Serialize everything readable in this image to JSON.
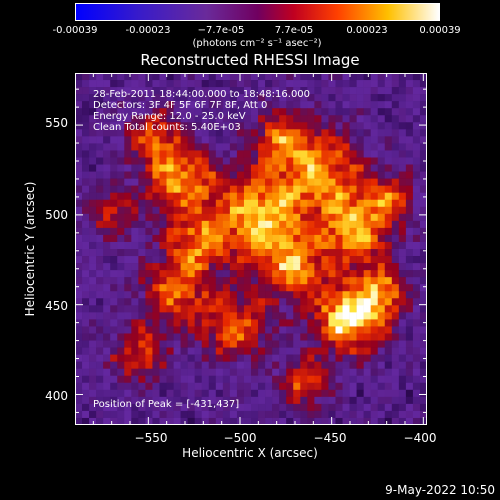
{
  "colorbar": {
    "labels": [
      "-0.00039",
      "-0.00023",
      "−7.7e-05",
      "7.7e-05",
      "0.00023",
      "0.00039"
    ],
    "units": "(photons cm⁻² s⁻¹ asec⁻²)"
  },
  "chart_data": {
    "type": "heatmap",
    "title": "Reconstructed RHESSI Image",
    "xlabel": "Heliocentric X (arcsec)",
    "ylabel": "Heliocentric Y (arcsec)",
    "xlim": [
      -590,
      -398
    ],
    "ylim": [
      383,
      579
    ],
    "xticks": [
      -550,
      -500,
      -450,
      -400
    ],
    "yticks": [
      400,
      450,
      500,
      550
    ],
    "x_tick_labels": [
      "−550",
      "−500",
      "−450",
      "−400"
    ],
    "y_tick_labels": [
      "400",
      "450",
      "500",
      "550"
    ],
    "colorbar_range": [
      -0.00039,
      0.00039
    ],
    "peak_position": [
      -431,
      437
    ],
    "annotations": [
      "28-Feb-2011 18:44:00.000 to 18:48:16.000",
      "Detectors: 3F 4F 5F 6F 7F 8F, Att 0",
      "Energy Range: 12.0 - 25.0 keV",
      "Clean     Total counts: 5.40E+03"
    ],
    "peak_label": "Position of Peak = [-431,437]"
  },
  "footer": {
    "date": "9-May-2022 10:50"
  }
}
